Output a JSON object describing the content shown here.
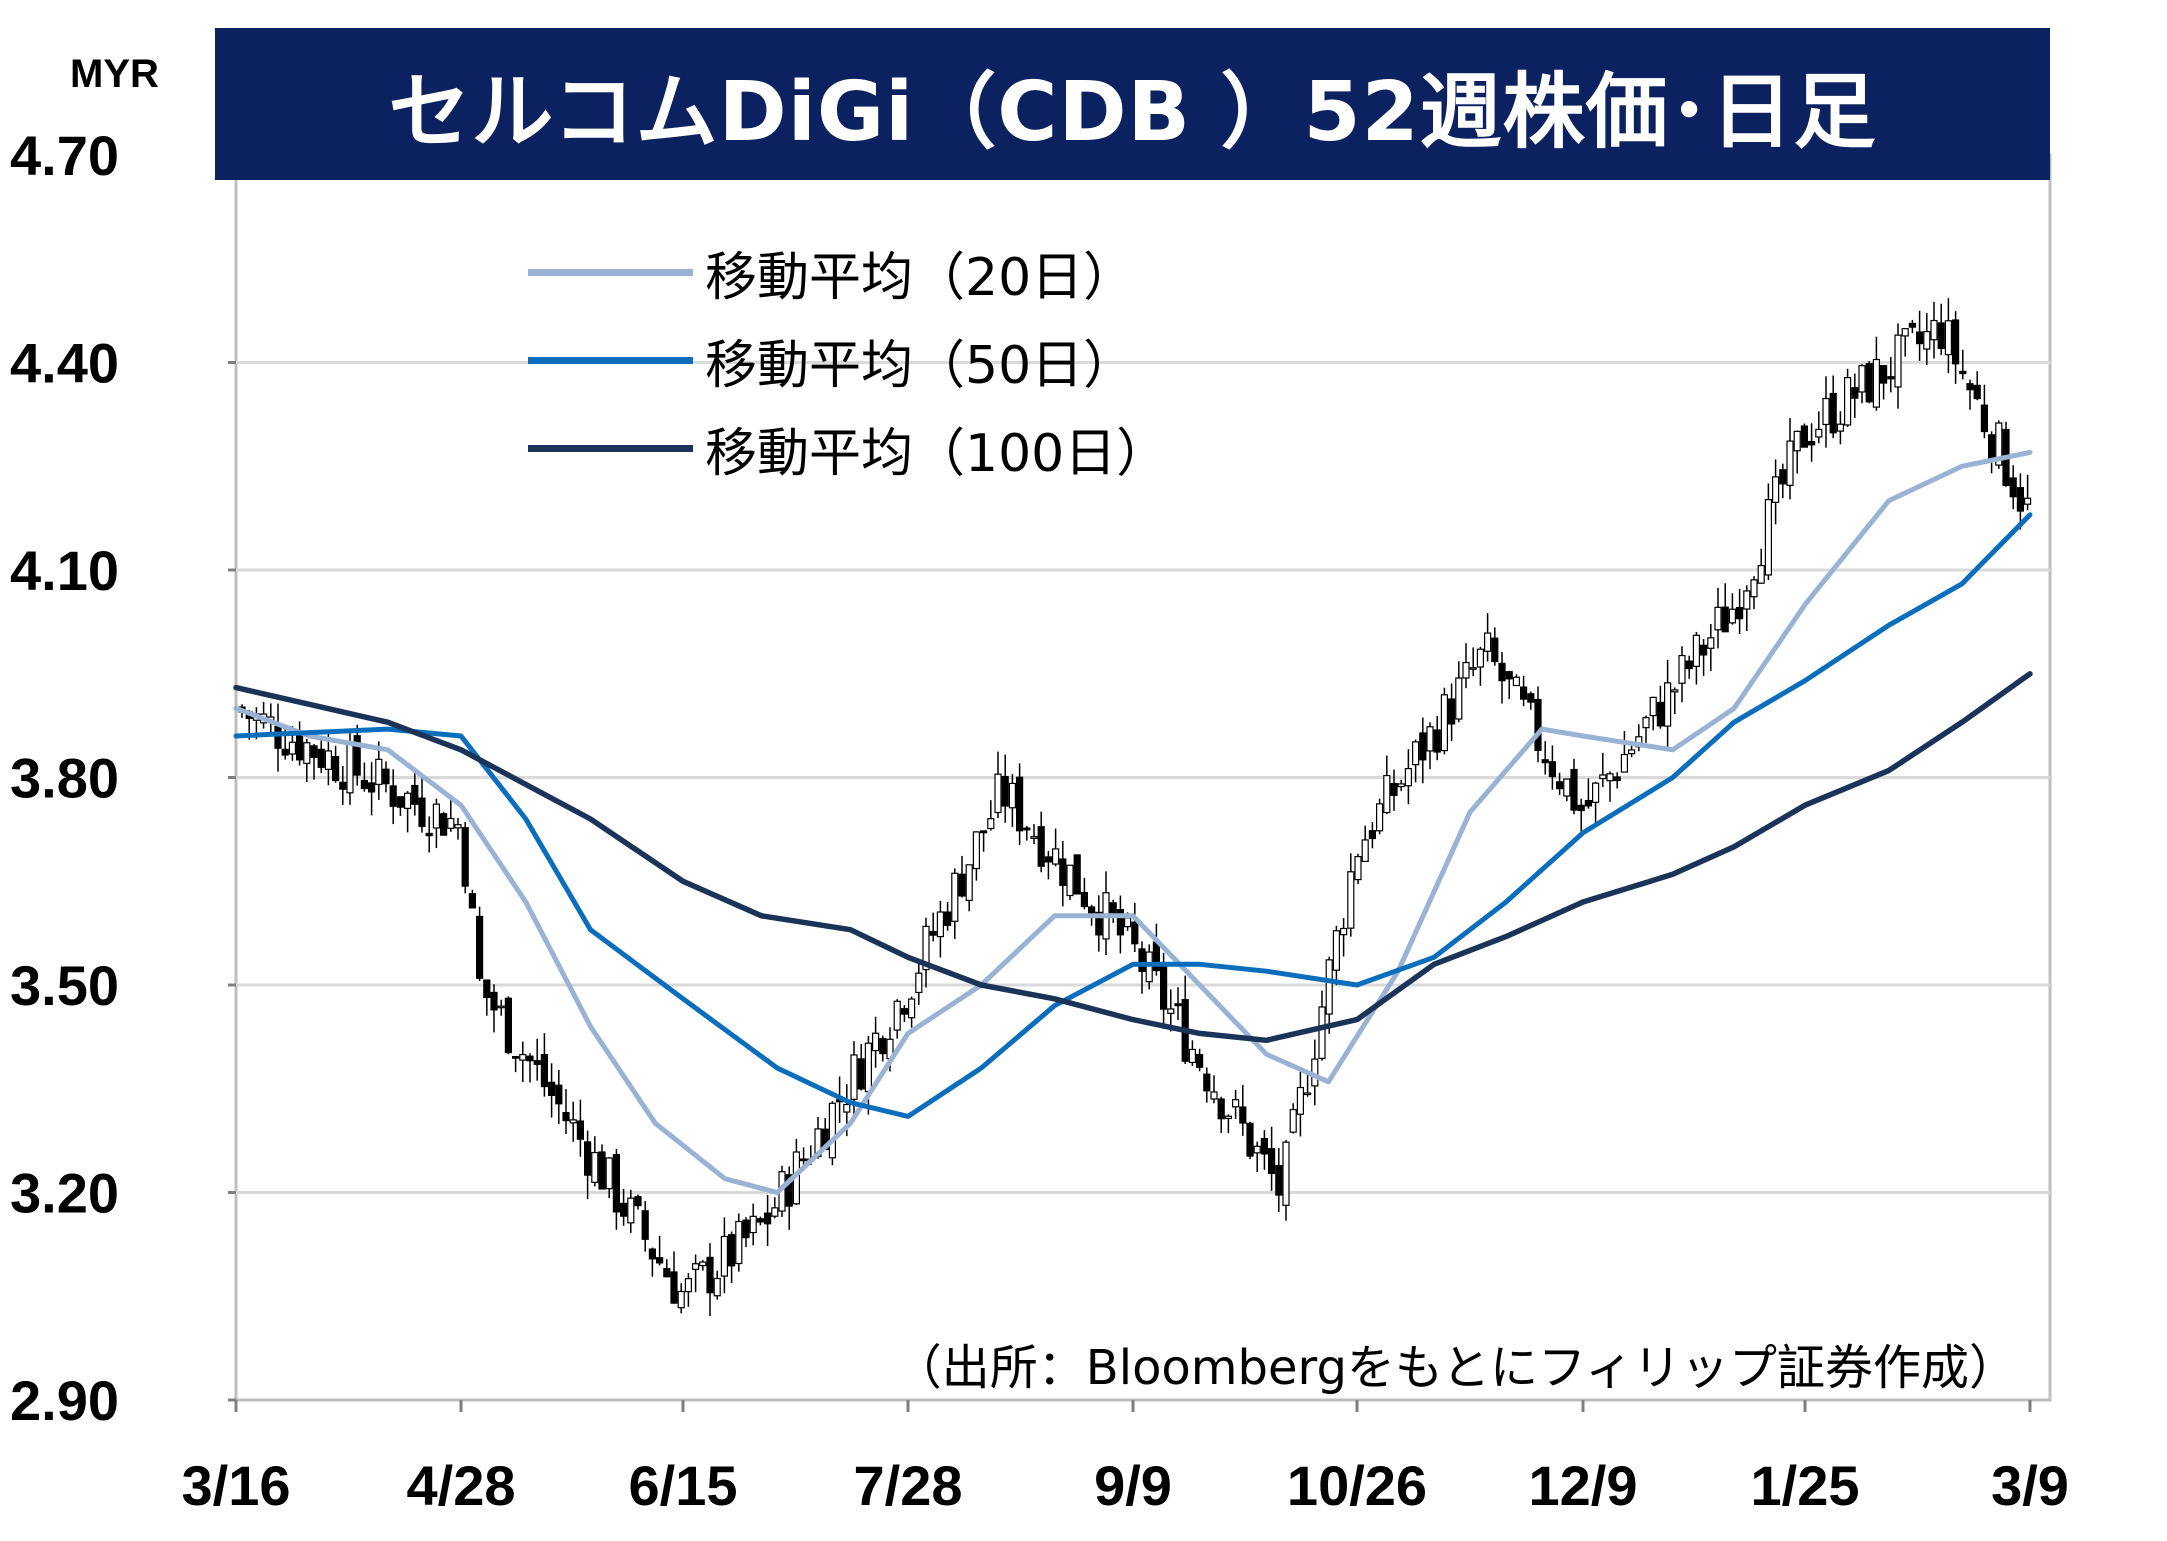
{
  "unit": "MYR",
  "title": "セルコムDiGi（CDB ）52週株価･日足",
  "source": "（出所：Bloombergをもとにフィリップ証券作成）",
  "legend": [
    {
      "label": "移動平均（20日）",
      "color": "#9ab3d5"
    },
    {
      "label": "移動平均（50日）",
      "color": "#0a6ebd"
    },
    {
      "label": "移動平均（100日）",
      "color": "#1b3358"
    }
  ],
  "colors": {
    "up_candle": "#ffffff",
    "down_candle": "#000000",
    "grid": "#d9d9d9",
    "banner": "#0c2260"
  },
  "chart_data": {
    "type": "candlestick",
    "x_tick_labels": [
      "3/16",
      "4/28",
      "6/15",
      "7/28",
      "9/9",
      "10/26",
      "12/9",
      "1/25",
      "3/9"
    ],
    "y_tick_labels": [
      "4.70",
      "4.40",
      "4.10",
      "3.80",
      "3.50",
      "3.20",
      "2.90"
    ],
    "ylim": [
      2.9,
      4.7
    ],
    "grid": true,
    "legend_position": "top-left",
    "close_approx": [
      {
        "date": "3/16",
        "value": 3.9
      },
      {
        "date": "4/28",
        "value": 3.73
      },
      {
        "date": "5/2",
        "value": 3.5
      },
      {
        "date": "6/15",
        "value": 3.05
      },
      {
        "date": "6/30",
        "value": 3.15
      },
      {
        "date": "7/28",
        "value": 3.5
      },
      {
        "date": "8/15",
        "value": 3.78
      },
      {
        "date": "9/9",
        "value": 3.55
      },
      {
        "date": "10/10",
        "value": 3.2
      },
      {
        "date": "10/26",
        "value": 3.7
      },
      {
        "date": "11/20",
        "value": 3.98
      },
      {
        "date": "12/9",
        "value": 3.75
      },
      {
        "date": "1/10",
        "value": 4.05
      },
      {
        "date": "1/25",
        "value": 4.3
      },
      {
        "date": "2/20",
        "value": 4.45
      },
      {
        "date": "3/9",
        "value": 4.18
      }
    ],
    "series": [
      {
        "name": "移動平均（20日）",
        "points": [
          [
            "3/16",
            3.9
          ],
          [
            "3/30",
            3.86
          ],
          [
            "4/14",
            3.84
          ],
          [
            "4/28",
            3.76
          ],
          [
            "5/12",
            3.62
          ],
          [
            "5/26",
            3.44
          ],
          [
            "6/9",
            3.3
          ],
          [
            "6/23",
            3.22
          ],
          [
            "7/3",
            3.2
          ],
          [
            "7/17",
            3.3
          ],
          [
            "7/28",
            3.43
          ],
          [
            "8/11",
            3.5
          ],
          [
            "8/25",
            3.6
          ],
          [
            "9/9",
            3.6
          ],
          [
            "9/23",
            3.5
          ],
          [
            "10/7",
            3.4
          ],
          [
            "10/20",
            3.36
          ],
          [
            "11/3",
            3.52
          ],
          [
            "11/17",
            3.75
          ],
          [
            "12/1",
            3.87
          ],
          [
            "12/9",
            3.86
          ],
          [
            "12/28",
            3.84
          ],
          [
            "1/10",
            3.9
          ],
          [
            "1/25",
            4.05
          ],
          [
            "2/10",
            4.2
          ],
          [
            "2/24",
            4.25
          ],
          [
            "3/9",
            4.27
          ]
        ]
      },
      {
        "name": "移動平均（50日）",
        "points": [
          [
            "3/16",
            3.86
          ],
          [
            "4/14",
            3.87
          ],
          [
            "4/28",
            3.86
          ],
          [
            "5/12",
            3.74
          ],
          [
            "5/26",
            3.58
          ],
          [
            "6/15",
            3.48
          ],
          [
            "7/3",
            3.38
          ],
          [
            "7/17",
            3.33
          ],
          [
            "7/28",
            3.31
          ],
          [
            "8/11",
            3.38
          ],
          [
            "8/25",
            3.47
          ],
          [
            "9/9",
            3.53
          ],
          [
            "9/23",
            3.53
          ],
          [
            "10/7",
            3.52
          ],
          [
            "10/26",
            3.5
          ],
          [
            "11/10",
            3.54
          ],
          [
            "11/24",
            3.62
          ],
          [
            "12/9",
            3.72
          ],
          [
            "12/28",
            3.8
          ],
          [
            "1/10",
            3.88
          ],
          [
            "1/25",
            3.94
          ],
          [
            "2/10",
            4.02
          ],
          [
            "2/24",
            4.08
          ],
          [
            "3/9",
            4.18
          ]
        ]
      },
      {
        "name": "移動平均（100日）",
        "points": [
          [
            "3/16",
            3.93
          ],
          [
            "4/14",
            3.88
          ],
          [
            "4/28",
            3.84
          ],
          [
            "5/12",
            3.79
          ],
          [
            "5/26",
            3.74
          ],
          [
            "6/15",
            3.65
          ],
          [
            "6/30",
            3.6
          ],
          [
            "7/17",
            3.58
          ],
          [
            "7/28",
            3.54
          ],
          [
            "8/11",
            3.5
          ],
          [
            "8/25",
            3.48
          ],
          [
            "9/9",
            3.45
          ],
          [
            "9/23",
            3.43
          ],
          [
            "10/7",
            3.42
          ],
          [
            "10/26",
            3.45
          ],
          [
            "11/10",
            3.53
          ],
          [
            "11/24",
            3.57
          ],
          [
            "12/9",
            3.62
          ],
          [
            "12/28",
            3.66
          ],
          [
            "1/10",
            3.7
          ],
          [
            "1/25",
            3.76
          ],
          [
            "2/10",
            3.81
          ],
          [
            "2/24",
            3.88
          ],
          [
            "3/9",
            3.95
          ]
        ]
      }
    ]
  }
}
